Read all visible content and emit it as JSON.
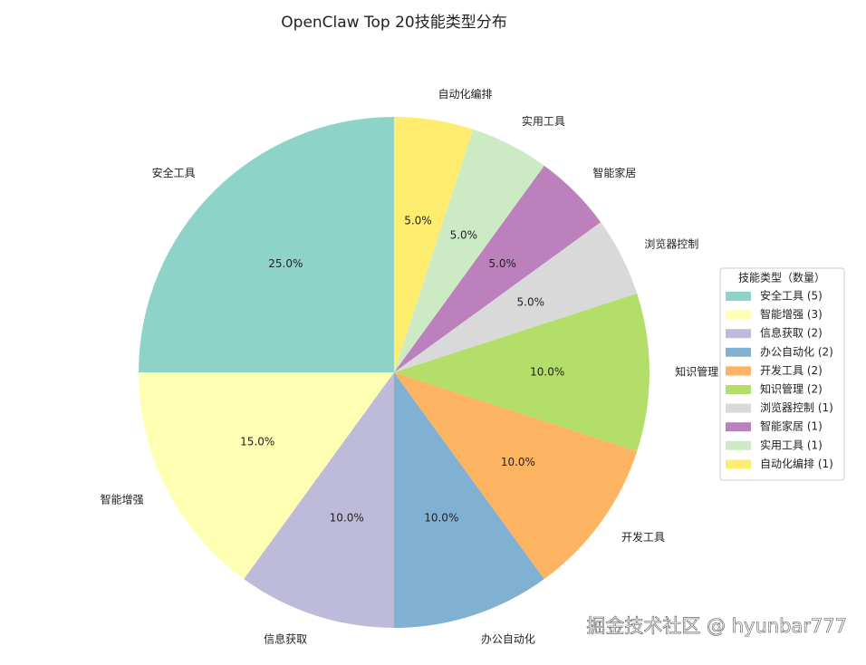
{
  "chart_data": {
    "type": "pie",
    "title": "OpenClaw Top 20技能类型分布",
    "categories": [
      "安全工具",
      "智能增强",
      "信息获取",
      "办公自动化",
      "开发工具",
      "知识管理",
      "浏览器控制",
      "智能家居",
      "实用工具",
      "自动化编排"
    ],
    "values": [
      25.0,
      15.0,
      10.0,
      10.0,
      10.0,
      10.0,
      5.0,
      5.0,
      5.0,
      5.0
    ],
    "value_labels": [
      "25.0%",
      "15.0%",
      "10.0%",
      "10.0%",
      "10.0%",
      "10.0%",
      "5.0%",
      "5.0%",
      "5.0%",
      "5.0%"
    ],
    "colors": [
      "#8dd3c7",
      "#ffffb3",
      "#bebada",
      "#80b1d3",
      "#fdb462",
      "#b3de69",
      "#d9d9d9",
      "#bc80bd",
      "#ccebc5",
      "#ffed6f"
    ],
    "legend_title": "技能类型（数量）",
    "legend_labels": [
      "安全工具 (5)",
      "智能增强 (3)",
      "信息获取 (2)",
      "办公自动化 (2)",
      "开发工具 (2)",
      "知识管理 (2)",
      "浏览器控制 (1)",
      "智能家居 (1)",
      "实用工具 (1)",
      "自动化编排 (1)"
    ],
    "legend_position": "right"
  },
  "watermark": "掘金技术社区 @ hyunbar777"
}
